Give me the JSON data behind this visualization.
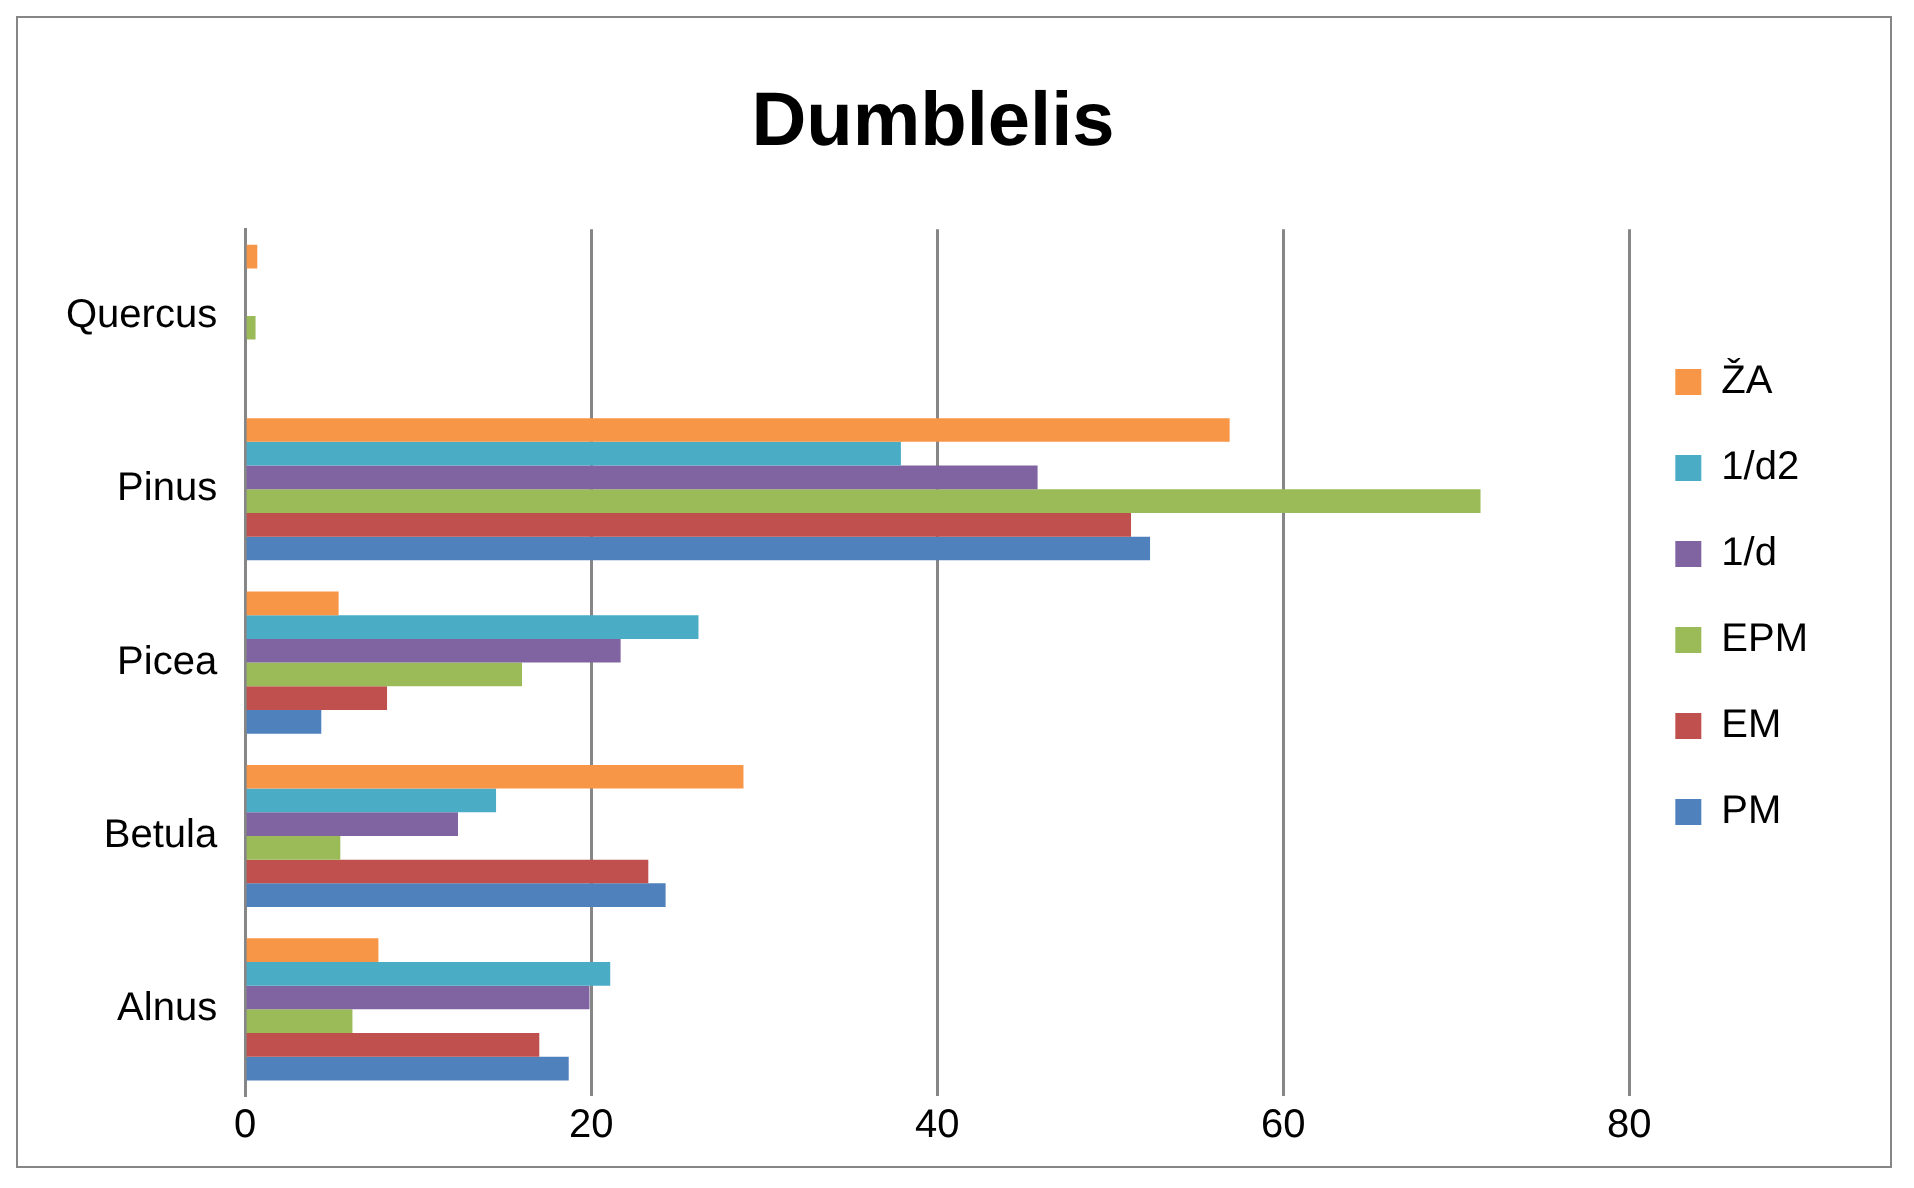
{
  "chart_data": {
    "type": "bar",
    "title": "Dumblelis",
    "orientation": "horizontal",
    "categories": [
      "Quercus",
      "Pinus",
      "Picea",
      "Betula",
      "Alnus"
    ],
    "series": [
      {
        "name": "ŽA",
        "color": "#f79646",
        "values": [
          0.7,
          56.9,
          5.4,
          28.8,
          7.7
        ]
      },
      {
        "name": "1/d2",
        "color": "#4bacc6",
        "values": [
          0,
          37.9,
          26.2,
          14.5,
          21.1
        ]
      },
      {
        "name": "1/d",
        "color": "#8064a2",
        "values": [
          0,
          45.8,
          21.7,
          12.3,
          19.9
        ]
      },
      {
        "name": "EPM",
        "color": "#9bbb59",
        "values": [
          0.6,
          71.4,
          16.0,
          5.5,
          6.2
        ]
      },
      {
        "name": "EM",
        "color": "#c0504d",
        "values": [
          0,
          51.2,
          8.2,
          23.3,
          17.0
        ]
      },
      {
        "name": "PM",
        "color": "#4f81bd",
        "values": [
          0,
          52.3,
          4.4,
          24.3,
          18.7
        ]
      }
    ],
    "xlim": [
      0,
      80
    ],
    "xticks": [
      0,
      20,
      40,
      60,
      80
    ],
    "grid": "x",
    "legend": "right"
  }
}
